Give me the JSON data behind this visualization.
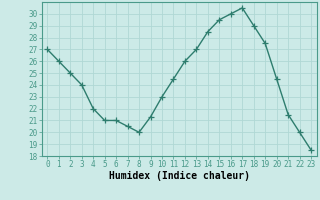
{
  "x": [
    0,
    1,
    2,
    3,
    4,
    5,
    6,
    7,
    8,
    9,
    10,
    11,
    12,
    13,
    14,
    15,
    16,
    17,
    18,
    19,
    20,
    21,
    22,
    23
  ],
  "y": [
    27,
    26,
    25,
    24,
    22,
    21,
    21,
    20.5,
    20,
    21.3,
    23,
    24.5,
    26,
    27,
    28.5,
    29.5,
    30,
    30.5,
    29,
    27.5,
    24.5,
    21.5,
    20,
    18.5
  ],
  "line_color": "#2e7d6e",
  "marker": "+",
  "marker_size": 4,
  "linewidth": 1.0,
  "bg_color": "#cceae7",
  "grid_color": "#b0d8d4",
  "xlabel": "Humidex (Indice chaleur)",
  "xlim": [
    -0.5,
    23.5
  ],
  "ylim": [
    18,
    31
  ],
  "yticks": [
    18,
    19,
    20,
    21,
    22,
    23,
    24,
    25,
    26,
    27,
    28,
    29,
    30
  ],
  "xticks": [
    0,
    1,
    2,
    3,
    4,
    5,
    6,
    7,
    8,
    9,
    10,
    11,
    12,
    13,
    14,
    15,
    16,
    17,
    18,
    19,
    20,
    21,
    22,
    23
  ],
  "tick_fontsize": 5.5,
  "xlabel_fontsize": 7,
  "spine_color": "#4a9a8a"
}
